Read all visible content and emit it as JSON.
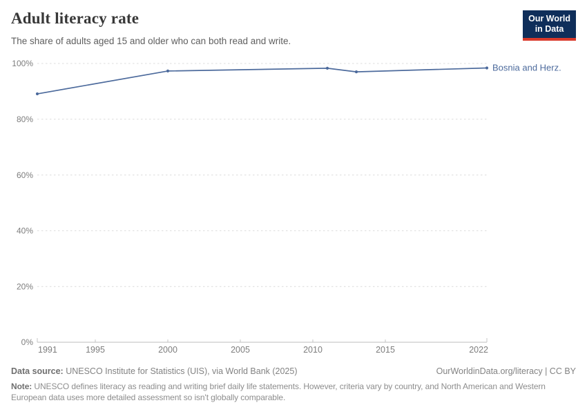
{
  "header": {
    "title": "Adult literacy rate",
    "subtitle": "The share of adults aged 15 and older who can both read and write.",
    "logo": {
      "line1": "Our World",
      "line2": "in Data",
      "bg_color": "#0f2e5a",
      "accent_color": "#d9392a"
    }
  },
  "chart_data": {
    "type": "line",
    "title": "Adult literacy rate",
    "xlabel": "",
    "ylabel": "",
    "xlim": [
      1991,
      2022
    ],
    "ylim": [
      0,
      100
    ],
    "x_ticks": [
      1991,
      1995,
      2000,
      2005,
      2010,
      2015,
      2022
    ],
    "y_ticks": [
      0,
      20,
      40,
      60,
      80,
      100
    ],
    "y_suffix": "%",
    "grid": "horizontal-dashed",
    "legend_position": "end-of-line-label",
    "series": [
      {
        "name": "Bosnia and Herz.",
        "color": "#4c6a9c",
        "points": [
          {
            "year": 1991,
            "value": 89.1
          },
          {
            "year": 2000,
            "value": 97.3
          },
          {
            "year": 2011,
            "value": 98.3
          },
          {
            "year": 2013,
            "value": 97.0
          },
          {
            "year": 2022,
            "value": 98.4
          }
        ]
      }
    ]
  },
  "footer": {
    "source_label": "Data source:",
    "source_text": " UNESCO Institute for Statistics (UIS), via World Bank (2025)",
    "link_text": "OurWorldinData.org/literacy | CC BY",
    "note_label": "Note:",
    "note_text": " UNESCO defines literacy as reading and writing brief daily life statements. However, criteria vary by country, and North American and Western European data uses more detailed assessment so isn't globally comparable."
  }
}
